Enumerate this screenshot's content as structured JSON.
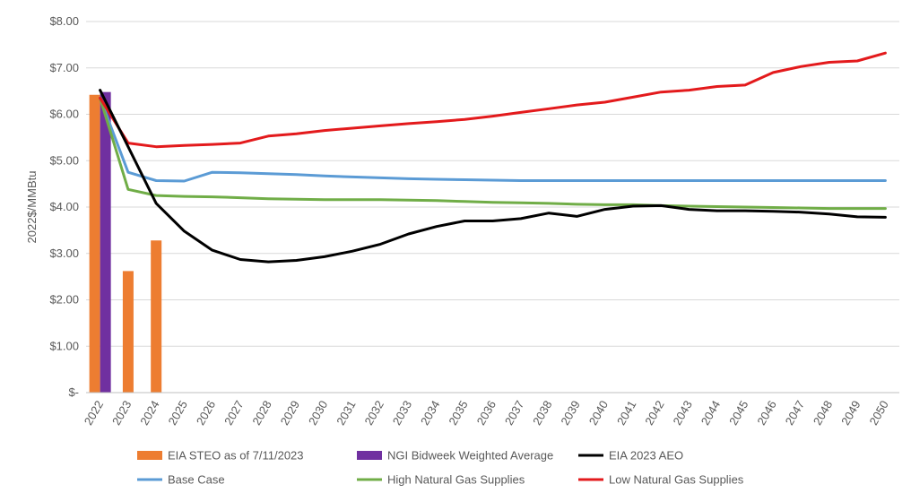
{
  "chart_data": {
    "type": "line",
    "title": "",
    "xlabel": "",
    "ylabel": "2022$/MMBtu",
    "ylim": [
      0,
      8
    ],
    "y_ticks": [
      0,
      1,
      2,
      3,
      4,
      5,
      6,
      7,
      8
    ],
    "y_tick_labels": [
      "$-",
      "$1.00",
      "$2.00",
      "$3.00",
      "$4.00",
      "$5.00",
      "$6.00",
      "$7.00",
      "$8.00"
    ],
    "grid": "horizontal",
    "legend_position": "bottom",
    "categories": [
      "2022",
      "2023",
      "2024",
      "2025",
      "2026",
      "2027",
      "2028",
      "2029",
      "2030",
      "2031",
      "2032",
      "2033",
      "2034",
      "2035",
      "2036",
      "2037",
      "2038",
      "2039",
      "2040",
      "2041",
      "2042",
      "2043",
      "2044",
      "2045",
      "2046",
      "2047",
      "2048",
      "2049",
      "2050"
    ],
    "bar_series": [
      {
        "name": "EIA STEO as of 7/11/2023",
        "color": "#ED7D31",
        "values": {
          "2022": 6.42,
          "2023": 2.62,
          "2024": 3.28
        }
      },
      {
        "name": "NGI Bidweek Weighted Average",
        "color": "#7030A0",
        "values": {
          "2022": 6.48
        }
      }
    ],
    "series": [
      {
        "name": "EIA 2023 AEO",
        "color": "#000000",
        "values": [
          6.52,
          5.3,
          4.08,
          3.48,
          3.07,
          2.87,
          2.82,
          2.85,
          2.93,
          3.05,
          3.2,
          3.42,
          3.58,
          3.7,
          3.7,
          3.75,
          3.87,
          3.8,
          3.95,
          4.02,
          4.03,
          3.95,
          3.92,
          3.92,
          3.91,
          3.89,
          3.85,
          3.79,
          3.78
        ]
      },
      {
        "name": "Base Case",
        "color": "#5B9BD5",
        "values": [
          6.35,
          4.75,
          4.57,
          4.56,
          4.75,
          4.74,
          4.72,
          4.7,
          4.67,
          4.65,
          4.63,
          4.61,
          4.6,
          4.59,
          4.58,
          4.57,
          4.57,
          4.57,
          4.57,
          4.57,
          4.57,
          4.57,
          4.57,
          4.57,
          4.57,
          4.57,
          4.57,
          4.57,
          4.57
        ]
      },
      {
        "name": "High Natural Gas Supplies",
        "color": "#70AD47",
        "values": [
          6.35,
          4.38,
          4.25,
          4.23,
          4.22,
          4.2,
          4.18,
          4.17,
          4.16,
          4.16,
          4.16,
          4.15,
          4.14,
          4.12,
          4.1,
          4.09,
          4.08,
          4.06,
          4.05,
          4.05,
          4.03,
          4.02,
          4.01,
          4.0,
          3.99,
          3.98,
          3.97,
          3.97,
          3.97
        ]
      },
      {
        "name": "Low Natural Gas Supplies",
        "color": "#E31A1C",
        "values": [
          6.35,
          5.38,
          5.3,
          5.33,
          5.35,
          5.38,
          5.53,
          5.58,
          5.65,
          5.7,
          5.75,
          5.8,
          5.84,
          5.89,
          5.96,
          6.04,
          6.12,
          6.2,
          6.26,
          6.37,
          6.48,
          6.52,
          6.6,
          6.63,
          6.9,
          7.03,
          7.12,
          7.15,
          7.32
        ]
      }
    ],
    "legend_order": [
      [
        "EIA STEO as of 7/11/2023",
        "bar"
      ],
      [
        "NGI Bidweek Weighted Average",
        "bar"
      ],
      [
        "EIA 2023 AEO",
        "line"
      ],
      [
        "Base Case",
        "line"
      ],
      [
        "High Natural Gas Supplies",
        "line"
      ],
      [
        "Low Natural Gas Supplies",
        "line"
      ]
    ]
  }
}
